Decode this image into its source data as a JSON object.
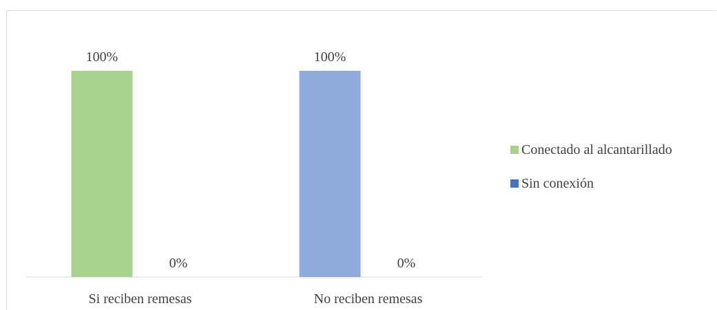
{
  "chart_data": {
    "type": "bar",
    "categories": [
      "Si reciben remesas",
      "No reciben remesas"
    ],
    "series": [
      {
        "name": "Conectado al alcantarillado",
        "values": [
          100,
          0
        ],
        "data_labels": [
          "100%",
          "0%"
        ]
      },
      {
        "name": "Sin conexión",
        "values": [
          100,
          0
        ],
        "data_labels": [
          "100%",
          "0%"
        ]
      }
    ],
    "bars": [
      {
        "category_index": 0,
        "slot": 0,
        "value": 100,
        "label": "100%",
        "color": "#a9d18e"
      },
      {
        "category_index": 0,
        "slot": 1,
        "value": 0,
        "label": "0%",
        "color": "#a9d18e"
      },
      {
        "category_index": 1,
        "slot": 0,
        "value": 100,
        "label": "100%",
        "color": "#8faadc"
      },
      {
        "category_index": 1,
        "slot": 1,
        "value": 0,
        "label": "0%",
        "color": "#8faadc"
      }
    ],
    "ylim": [
      0,
      100
    ],
    "grid": false,
    "legend_position": "right",
    "colors": {
      "Conectado al alcantarillado": "#a9d18e",
      "Sin conexión": "#4472c4"
    }
  },
  "legend": [
    {
      "label": "Conectado al alcantarillado",
      "color": "#a9d18e"
    },
    {
      "label": "Sin conexión",
      "color": "#4472c4"
    }
  ]
}
